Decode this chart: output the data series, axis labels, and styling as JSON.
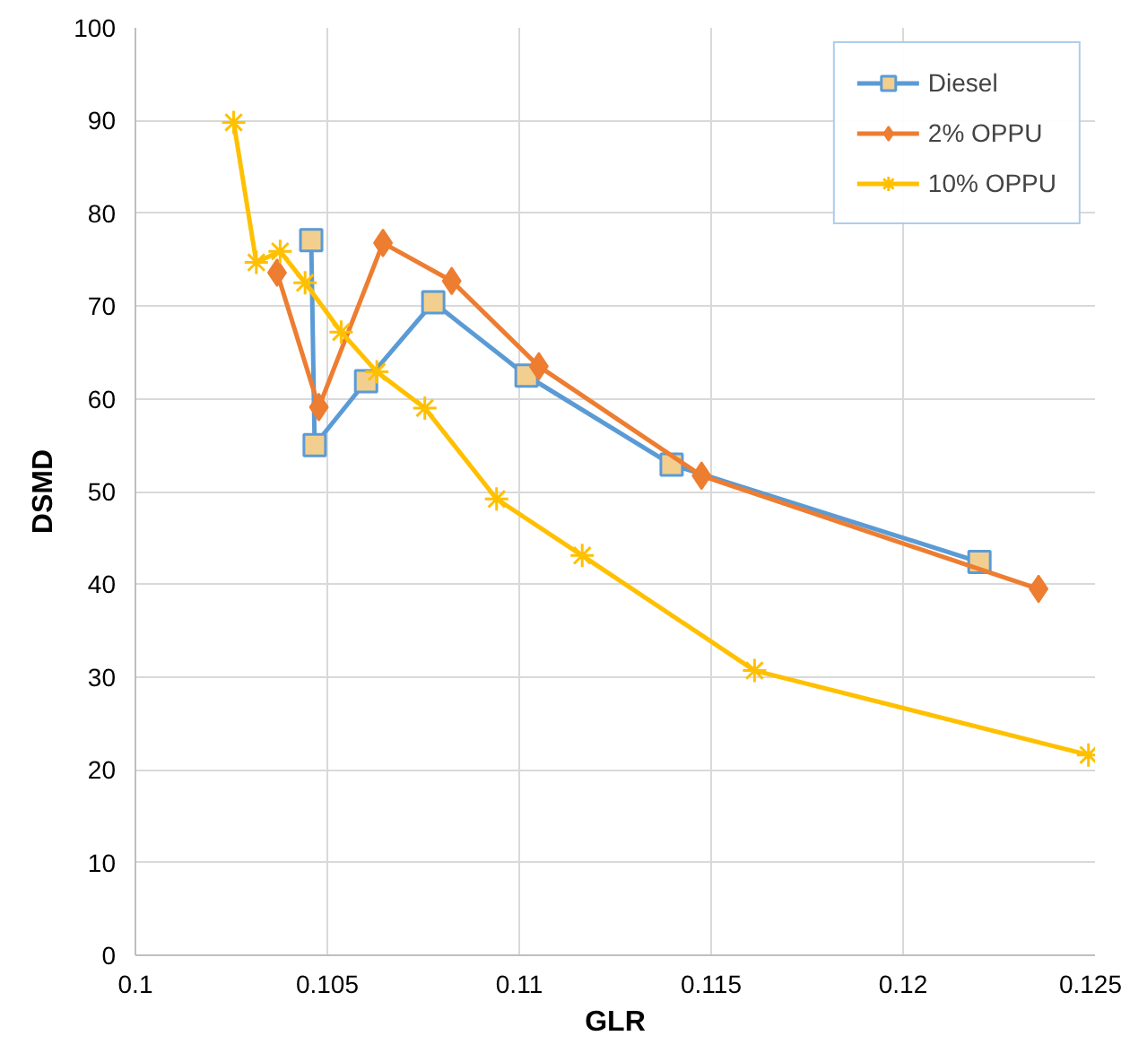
{
  "chart_data": {
    "type": "line",
    "xlabel": "GLR",
    "ylabel": "DSMD",
    "xlim": [
      0.1,
      0.125
    ],
    "xticks": [
      0.1,
      0.105,
      0.11,
      0.115,
      0.12,
      0.125
    ],
    "ylim": [
      0,
      100
    ],
    "yticks": [
      0,
      10,
      20,
      30,
      40,
      50,
      60,
      70,
      80,
      90,
      100
    ],
    "grid": true,
    "legend": "top right",
    "series": [
      {
        "name": "Diesel",
        "color": "#5b9bd5",
        "marker": "square",
        "x": [
          0.10458,
          0.10467,
          0.10601,
          0.10776,
          0.11019,
          0.11397,
          0.12199
        ],
        "values": [
          77.1,
          55.0,
          61.9,
          70.4,
          62.5,
          52.9,
          42.4
        ]
      },
      {
        "name": "2% OPPU",
        "color": "#ed7d31",
        "marker": "diamond",
        "x": [
          0.10369,
          0.10478,
          0.10645,
          0.10824,
          0.11051,
          0.11475,
          0.12353
        ],
        "values": [
          73.6,
          59.1,
          76.8,
          72.7,
          63.5,
          51.7,
          39.5
        ]
      },
      {
        "name": "10% OPPU",
        "color": "#ffc000",
        "marker": "cross",
        "x": [
          0.10256,
          0.10315,
          0.10377,
          0.10442,
          0.10536,
          0.10629,
          0.10754,
          0.10941,
          0.11164,
          0.11613,
          0.12483
        ],
        "values": [
          89.8,
          74.7,
          75.9,
          72.5,
          67.2,
          62.9,
          59.0,
          49.2,
          43.1,
          30.7,
          21.6
        ]
      }
    ]
  }
}
